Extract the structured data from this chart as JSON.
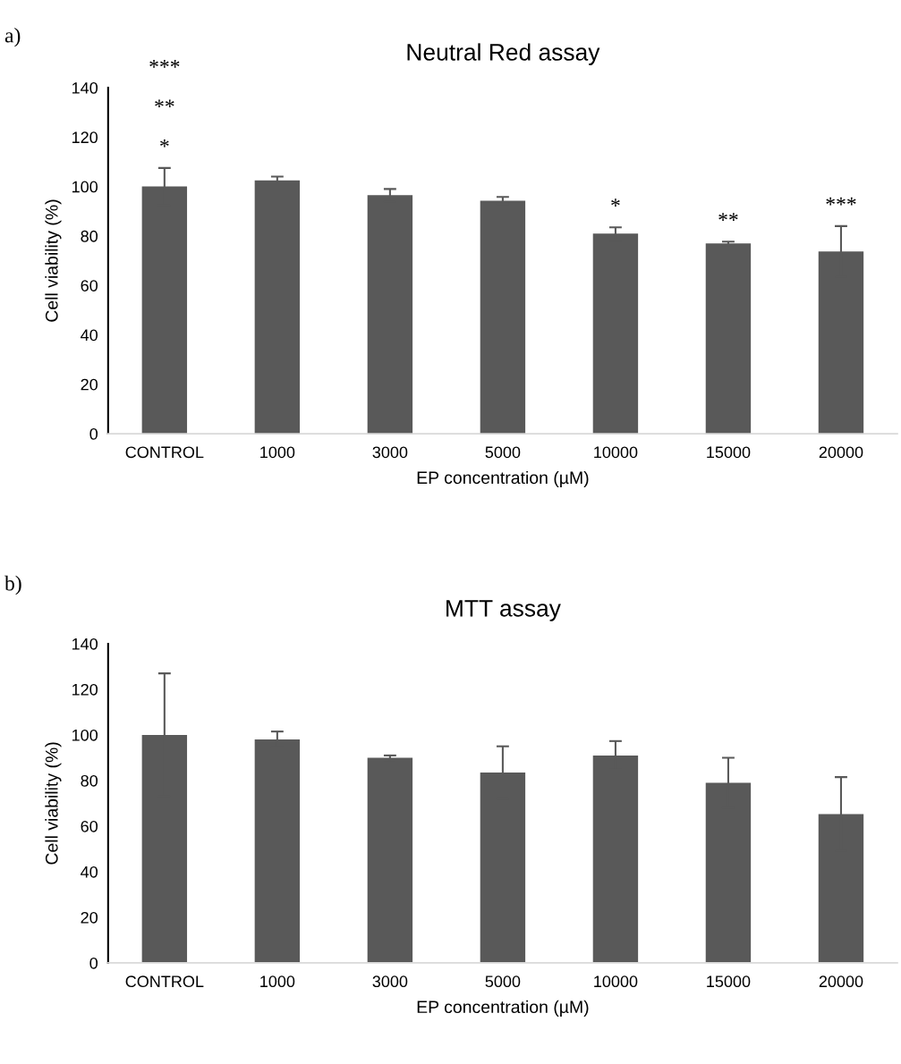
{
  "chart_data": [
    {
      "type": "bar",
      "title": "Neutral Red assay",
      "xlabel": "EP concentration (µM)",
      "ylabel": "Cell viability (%)",
      "categories": [
        "CONTROL",
        "1000",
        "3000",
        "5000",
        "10000",
        "15000",
        "20000"
      ],
      "values": [
        100,
        102.5,
        96.5,
        94.3,
        81,
        77,
        73.7
      ],
      "errors": [
        7.5,
        1.5,
        2.5,
        1.5,
        2.5,
        0.7,
        10.3
      ],
      "color": "#595959",
      "ylim": [
        0,
        140
      ],
      "yticks": [
        0,
        20,
        40,
        60,
        80,
        100,
        120,
        140
      ],
      "grid": false,
      "legend": false,
      "annotations": [
        "a)",
        "***",
        "**",
        "*",
        "*",
        "**",
        "***"
      ]
    },
    {
      "type": "bar",
      "title": "MTT assay",
      "xlabel": "EP concentration (µM)",
      "ylabel": "Cell viability (%)",
      "categories": [
        "CONTROL",
        "1000",
        "3000",
        "5000",
        "10000",
        "15000",
        "20000"
      ],
      "values": [
        100,
        98,
        90,
        83.5,
        91,
        79,
        65.3
      ],
      "errors": [
        27,
        3.5,
        1,
        11.5,
        6.3,
        11,
        16.2
      ],
      "color": "#595959",
      "ylim": [
        0,
        140
      ],
      "yticks": [
        0,
        20,
        40,
        60,
        80,
        100,
        120,
        140
      ],
      "grid": false,
      "legend": false,
      "annotations": [
        "b)"
      ]
    }
  ]
}
